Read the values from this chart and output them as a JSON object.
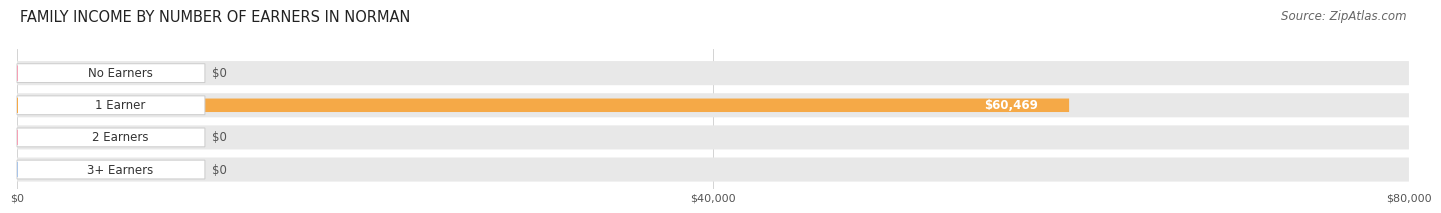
{
  "title": "FAMILY INCOME BY NUMBER OF EARNERS IN NORMAN",
  "source": "Source: ZipAtlas.com",
  "categories": [
    "No Earners",
    "1 Earner",
    "2 Earners",
    "3+ Earners"
  ],
  "values": [
    0,
    60469,
    0,
    0
  ],
  "bar_colors": [
    "#f5a0b5",
    "#f5a947",
    "#f5a0b5",
    "#a8c4e8"
  ],
  "xlim": [
    0,
    80000
  ],
  "xticks": [
    0,
    40000,
    80000
  ],
  "xticklabels": [
    "$0",
    "$40,000",
    "$80,000"
  ],
  "value_label": "$60,469",
  "title_fontsize": 10.5,
  "source_fontsize": 8.5,
  "tick_fontsize": 8,
  "bar_label_fontsize": 8.5,
  "category_fontsize": 8.5,
  "bg_bar_color": "#e8e8e8",
  "pill_bg": "#ffffff",
  "pill_edge": "#cccccc"
}
